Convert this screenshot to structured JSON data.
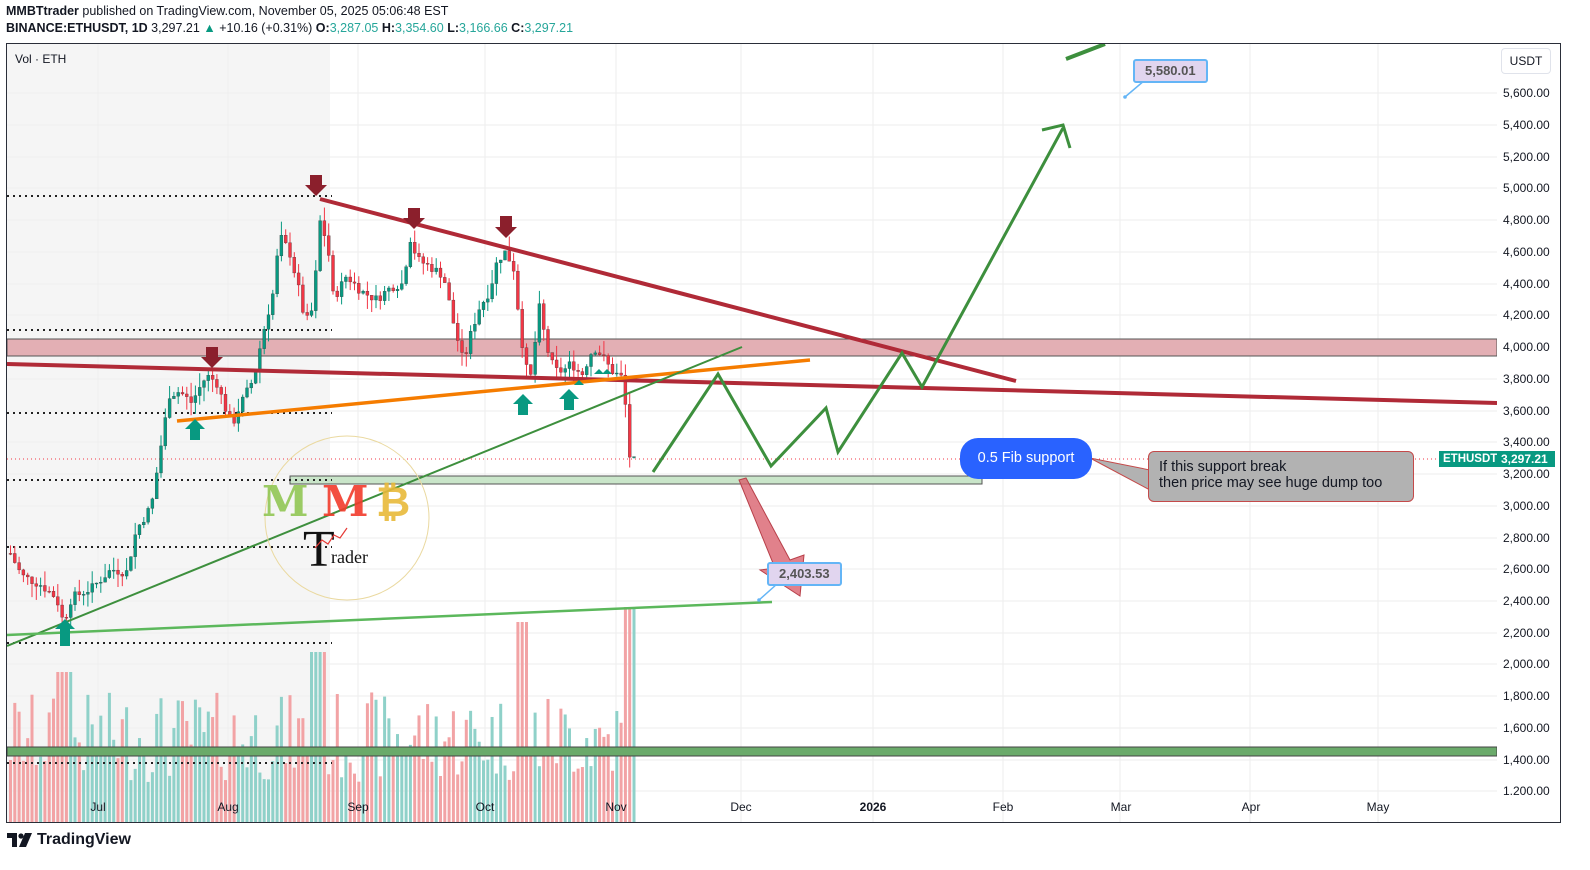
{
  "header": {
    "publisher": "MMBTtrader",
    "published_text": "published on TradingView.com, November 05, 2025 05:06:48 EST",
    "symbol": "BINANCE:ETHUSDT, 1D",
    "last_price": "3,297.21",
    "change_arrow": "▲",
    "change": "+10.16 (+0.31%)",
    "open_label": "O:",
    "open": "3,287.05",
    "high_label": "H:",
    "high": "3,354.60",
    "low_label": "L:",
    "low": "3,166.66",
    "close_label": "C:",
    "close": "3,297.21"
  },
  "pane": {
    "volume_label": "Vol · ETH",
    "currency_button": "USDT"
  },
  "price_axis": {
    "labels": [
      "5,600.00",
      "5,400.00",
      "5,200.00",
      "5,000.00",
      "4,800.00",
      "4,600.00",
      "4,400.00",
      "4,200.00",
      "4,000.00",
      "3,800.00",
      "3,600.00",
      "3,400.00",
      "3,200.00",
      "3,000.00",
      "2,800.00",
      "2,600.00",
      "2,400.00",
      "2,200.00",
      "2,000.00",
      "1,800.00",
      "1,600.00",
      "1,400.00",
      "1.200.00"
    ],
    "current_symbol": "ETHUSDT",
    "current_value": "3,297.21"
  },
  "time_axis": {
    "labels": [
      "Jul",
      "Aug",
      "Sep",
      "Oct",
      "Nov",
      "Dec",
      "2026",
      "Feb",
      "Mar",
      "Apr",
      "May"
    ]
  },
  "annotations": {
    "fib_bubble": "0.5 Fib support",
    "note_line1": "If this support break",
    "note_line2": "then price may see huge dump too",
    "target_high": "5,580.01",
    "target_low": "2,403.53"
  },
  "footer": {
    "brand": "TradingView"
  },
  "watermark": {
    "letters": "MMB",
    "subtitle": "rader",
    "big_letter": "T"
  },
  "colors": {
    "up_candle": "#089981",
    "down_candle": "#f23645",
    "vol_up": "#8fd1c9",
    "vol_down": "#f2a3a5",
    "resistance_line": "#b02a37",
    "projection": "#3d8f3d",
    "orange_line": "#f57c00",
    "fib_blue": "#2962ff",
    "resistance_zone": "#e3afb4",
    "support_zone": "#c9e5c9"
  },
  "chart_data": {
    "type": "candlestick",
    "title": "BINANCE:ETHUSDT, 1D",
    "xlabel": "",
    "ylabel": "USDT",
    "ylim": [
      1100,
      5900
    ],
    "x_range": [
      "2025-06",
      "2026-05"
    ],
    "ohlc_last": {
      "open": 3287.05,
      "high": 3354.6,
      "low": 3166.66,
      "close": 3297.21,
      "change": 10.16,
      "change_pct": 0.31
    },
    "monthly_path_approx": [
      {
        "month": "Jun 2025",
        "price": 2500
      },
      {
        "month": "Jul 2025",
        "price": 3700
      },
      {
        "month": "Aug 2025",
        "price": 4400
      },
      {
        "month": "Late Aug 2025 (peak)",
        "price": 4950
      },
      {
        "month": "Sep 2025",
        "price": 4200
      },
      {
        "month": "Oct 2025",
        "price": 3900
      },
      {
        "month": "Nov 2025",
        "price": 3297
      }
    ],
    "levels": [
      {
        "name": "resistance zone",
        "from": 3960,
        "to": 4060
      },
      {
        "name": "0.5 Fib support zone",
        "from": 3140,
        "to": 3180
      },
      {
        "name": "volume-pane green zone",
        "from": 1430,
        "to": 1470
      },
      {
        "name": "dotted level",
        "value": 4960
      },
      {
        "name": "dotted level",
        "value": 4100
      },
      {
        "name": "dotted level",
        "value": 3580
      },
      {
        "name": "dotted level",
        "value": 3160
      },
      {
        "name": "dotted level",
        "value": 2740
      },
      {
        "name": "dotted level",
        "value": 2140
      },
      {
        "name": "dotted level",
        "value": 1370
      }
    ],
    "trendlines": [
      {
        "name": "descending resistance",
        "from": [
          "Aug 23",
          4940
        ],
        "to": [
          "Jan 2026",
          3780
        ]
      },
      {
        "name": "horizontal-ish red line",
        "from": [
          "Jun",
          3890
        ],
        "to": [
          "May 2026",
          3650
        ]
      },
      {
        "name": "orange trendline",
        "from": [
          "Jul 20",
          3550
        ],
        "to": [
          "Dec 15",
          3910
        ]
      },
      {
        "name": "rising green support",
        "from": [
          "Jun",
          2110
        ],
        "to": [
          "Dec",
          4000
        ]
      },
      {
        "name": "long-term green support",
        "from": [
          "Jun",
          2180
        ],
        "to": [
          "Dec 7",
          2380
        ]
      }
    ],
    "projection_path": [
      {
        "date": "Nov 8",
        "price": 3200
      },
      {
        "date": "Nov 25",
        "price": 3870
      },
      {
        "date": "Dec 7",
        "price": 3260
      },
      {
        "date": "Dec 20",
        "price": 3620
      },
      {
        "date": "Dec 24",
        "price": 3340
      },
      {
        "date": "Jan 8",
        "price": 3980
      },
      {
        "date": "Jan 12",
        "price": 3750
      },
      {
        "date": "Feb 13",
        "price": 5400
      }
    ],
    "targets": [
      {
        "label": "5,580.01",
        "value": 5580.01
      },
      {
        "label": "2,403.53",
        "value": 2403.53
      }
    ],
    "series": [
      {
        "name": "Volume (ETH)",
        "note": "up/down colored bars in lower pane, spikes in mid-Oct and early Nov"
      }
    ]
  }
}
